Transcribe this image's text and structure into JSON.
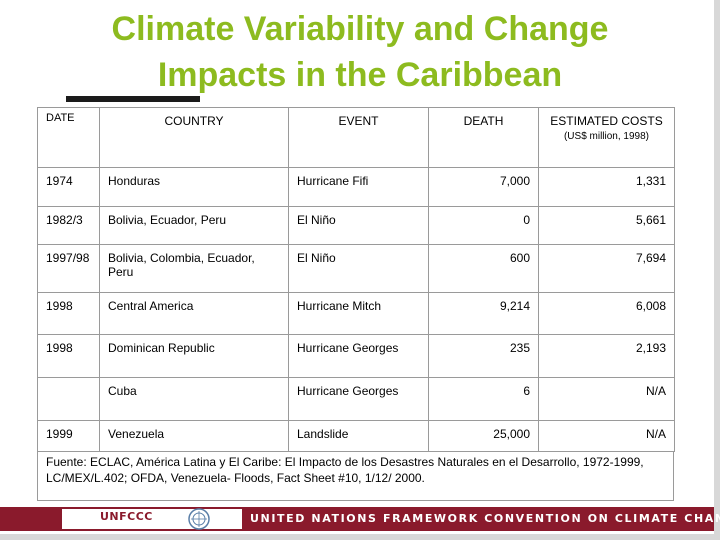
{
  "title": {
    "line1": "Climate Variability and Change",
    "line2": "Impacts in the Caribbean"
  },
  "table": {
    "headers": {
      "date": "DATE",
      "country": "COUNTRY",
      "event": "EVENT",
      "death": "DEATH",
      "costs": "ESTIMATED COSTS",
      "costs_unit": "(US$ million, 1998)"
    },
    "rows": [
      {
        "date": "1974",
        "country": "Honduras",
        "event": "Hurricane Fifi",
        "death": "7,000",
        "cost": "1,331"
      },
      {
        "date": "1982/3",
        "country": "Bolivia, Ecuador, Peru",
        "event": "El Niño",
        "death": "0",
        "cost": "5,661"
      },
      {
        "date": "1997/98",
        "country": "Bolivia, Colombia, Ecuador, Peru",
        "event": "El Niño",
        "death": "600",
        "cost": "7,694"
      },
      {
        "date": "1998",
        "country": "Central America",
        "event": "Hurricane Mitch",
        "death": "9,214",
        "cost": "6,008"
      },
      {
        "date": "1998",
        "country": "Dominican Republic",
        "event": "Hurricane Georges",
        "death": "235",
        "cost": "2,193"
      },
      {
        "date": "",
        "country": "Cuba",
        "event": "Hurricane Georges",
        "death": "6",
        "cost": "N/A"
      },
      {
        "date": "1999",
        "country": "Venezuela",
        "event": "Landslide",
        "death": "25,000",
        "cost": "N/A"
      }
    ]
  },
  "source": "Fuente: ECLAC, América Latina y El Caribe: El Impacto de los Desastres Naturales en el Desarrollo, 1972-1999, LC/MEX/L.402; OFDA, Venezuela- Floods, Fact Sheet #10, 1/12/ 2000.",
  "footer": {
    "logo_text": "UNFCCC",
    "banner_text": "UNITED NATIONS FRAMEWORK CONVENTION ON CLIMATE CHANGE",
    "banner_color": "#8a1a2c",
    "title_color": "#8dbb1f"
  }
}
